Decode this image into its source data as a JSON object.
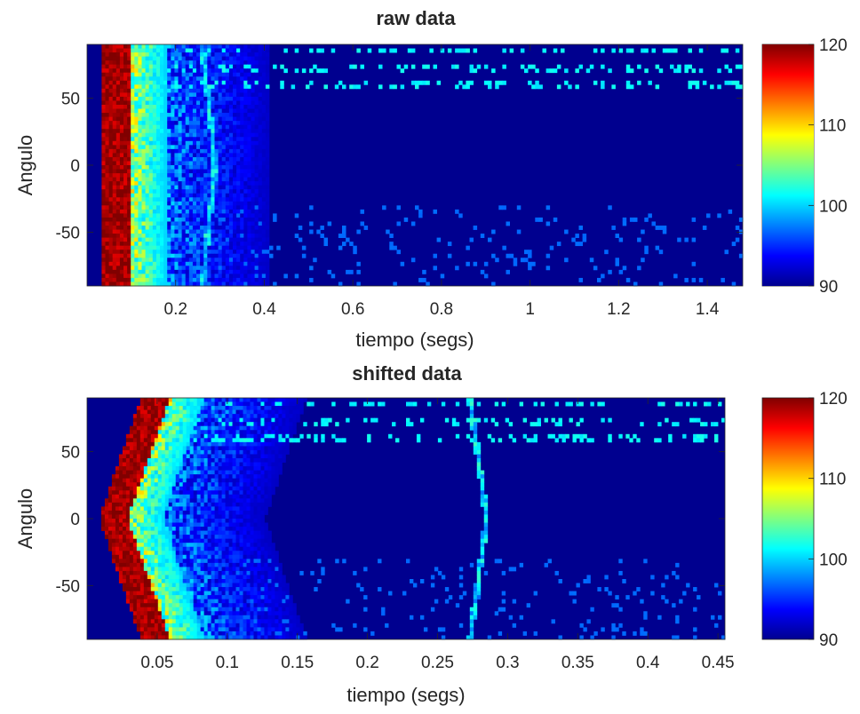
{
  "chart_data": [
    {
      "type": "heatmap",
      "title": "raw data",
      "xlabel": "tiempo (segs)",
      "ylabel": "Angulo",
      "xlim": [
        0,
        1.48
      ],
      "ylim": [
        -90,
        90
      ],
      "xticks": [
        0.2,
        0.4,
        0.6,
        0.8,
        1,
        1.2,
        1.4
      ],
      "xtick_labels": [
        "0.2",
        "0.4",
        "0.6",
        "0.8",
        "1",
        "1.2",
        "1.4"
      ],
      "yticks": [
        50,
        0,
        -50
      ],
      "ytick_labels": [
        "50",
        "0",
        "-50"
      ],
      "colorbar": {
        "range": [
          90,
          120
        ],
        "ticks": [
          120,
          110,
          100,
          90
        ],
        "tick_labels": [
          "120",
          "110",
          "100",
          "90"
        ],
        "colormap": "jet"
      },
      "features": {
        "arrival_time": 0.045,
        "arrival_shift": 0.0,
        "arc_time": 0.29,
        "arc_shift": 0.03,
        "background_value": 91,
        "bright_rows": [
          60,
          72,
          85
        ]
      }
    },
    {
      "type": "heatmap",
      "title": "shifted data",
      "xlabel": "tiempo (segs)",
      "ylabel": "Angulo",
      "xlim": [
        0,
        0.455
      ],
      "ylim": [
        -90,
        90
      ],
      "xticks": [
        0.05,
        0.1,
        0.15,
        0.2,
        0.25,
        0.3,
        0.35,
        0.4,
        0.45
      ],
      "xtick_labels": [
        "0.05",
        "0.1",
        "0.15",
        "0.2",
        "0.25",
        "0.3",
        "0.35",
        "0.4",
        "0.45"
      ],
      "yticks": [
        50,
        0,
        -50
      ],
      "ytick_labels": [
        "50",
        "0",
        "-50"
      ],
      "colorbar": {
        "range": [
          90,
          120
        ],
        "ticks": [
          120,
          110,
          100,
          90
        ],
        "tick_labels": [
          "120",
          "110",
          "100",
          "90"
        ],
        "colormap": "jet"
      },
      "features": {
        "arrival_time": 0.013,
        "arrival_shift": 0.03,
        "arc_time": 0.285,
        "arc_shift": 0.012,
        "background_value": 91,
        "bright_rows": [
          60,
          72,
          85
        ]
      }
    }
  ]
}
